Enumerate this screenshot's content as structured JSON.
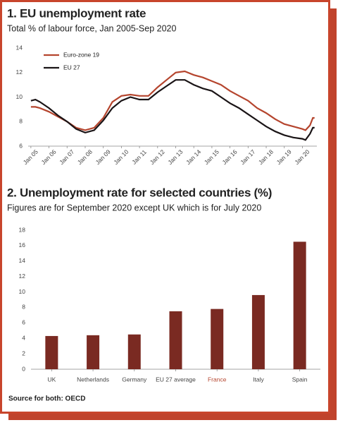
{
  "chart_data": [
    {
      "type": "line",
      "title": "1. EU unemployment rate",
      "subtitle": "Total % of labour force, Jan 2005-Sep 2020",
      "x": [
        2005,
        2005.25,
        2005.5,
        2006,
        2006.5,
        2007,
        2007.5,
        2008,
        2008.5,
        2009,
        2009.5,
        2010,
        2010.5,
        2011,
        2011.5,
        2012,
        2012.5,
        2013,
        2013.5,
        2014,
        2014.5,
        2015,
        2015.5,
        2016,
        2016.5,
        2017,
        2017.5,
        2018,
        2018.5,
        2019,
        2019.5,
        2020,
        2020.17,
        2020.42,
        2020.58,
        2020.67
      ],
      "series": [
        {
          "name": "Euro-zone 19",
          "color": "#b5452e",
          "values": [
            9.2,
            9.2,
            9.1,
            8.8,
            8.4,
            8.0,
            7.5,
            7.3,
            7.5,
            8.3,
            9.6,
            10.1,
            10.2,
            10.1,
            10.1,
            10.8,
            11.4,
            12.0,
            12.1,
            11.8,
            11.6,
            11.3,
            11.0,
            10.5,
            10.1,
            9.7,
            9.1,
            8.7,
            8.2,
            7.8,
            7.6,
            7.4,
            7.3,
            7.7,
            8.3,
            8.3
          ]
        },
        {
          "name": "EU 27",
          "color": "#1a1416",
          "values": [
            9.7,
            9.8,
            9.6,
            9.1,
            8.5,
            8.0,
            7.4,
            7.1,
            7.3,
            8.1,
            9.1,
            9.7,
            10.0,
            9.8,
            9.8,
            10.4,
            10.9,
            11.4,
            11.4,
            11.0,
            10.7,
            10.5,
            10.0,
            9.5,
            9.1,
            8.6,
            8.1,
            7.6,
            7.2,
            6.9,
            6.7,
            6.6,
            6.5,
            7.0,
            7.5,
            7.5
          ]
        }
      ],
      "xlim": [
        2004.85,
        2020.8
      ],
      "xticks": [
        {
          "value": 2005,
          "label": "Jan 05"
        },
        {
          "value": 2006,
          "label": "Jan 06"
        },
        {
          "value": 2007,
          "label": "Jan 07"
        },
        {
          "value": 2008,
          "label": "Jan 08"
        },
        {
          "value": 2009,
          "label": "Jan 09"
        },
        {
          "value": 2010,
          "label": "Jan 10"
        },
        {
          "value": 2011,
          "label": "Jan 11"
        },
        {
          "value": 2012,
          "label": "Jan 12"
        },
        {
          "value": 2013,
          "label": "Jan 13"
        },
        {
          "value": 2014,
          "label": "Jan 14"
        },
        {
          "value": 2015,
          "label": "Jan 15"
        },
        {
          "value": 2016,
          "label": "Jan 16"
        },
        {
          "value": 2017,
          "label": "Jan 17"
        },
        {
          "value": 2018,
          "label": "Jan 18"
        },
        {
          "value": 2019,
          "label": "Jan 19"
        },
        {
          "value": 2020,
          "label": "Jan 20"
        }
      ],
      "ylim": [
        6,
        14
      ],
      "yticks": [
        6,
        8,
        10,
        12,
        14
      ],
      "legend": "top-left"
    },
    {
      "type": "bar",
      "title": "2. Unemployment rate for selected countries (%)",
      "subtitle": "Figures are for September 2020 except UK which is for July 2020",
      "categories": [
        "UK",
        "Netherlands",
        "Germany",
        "EU 27 average",
        "France",
        "Italy",
        "Spain"
      ],
      "values": [
        4.3,
        4.4,
        4.5,
        7.5,
        7.8,
        9.6,
        16.5
      ],
      "color": "#7a2a22",
      "highlight": 4,
      "highlight_color": "#b5452e",
      "ylim": [
        0,
        18
      ],
      "yticks": [
        0,
        2,
        4,
        6,
        8,
        10,
        12,
        14,
        16,
        18
      ]
    }
  ],
  "source": "Source for both: OECD"
}
